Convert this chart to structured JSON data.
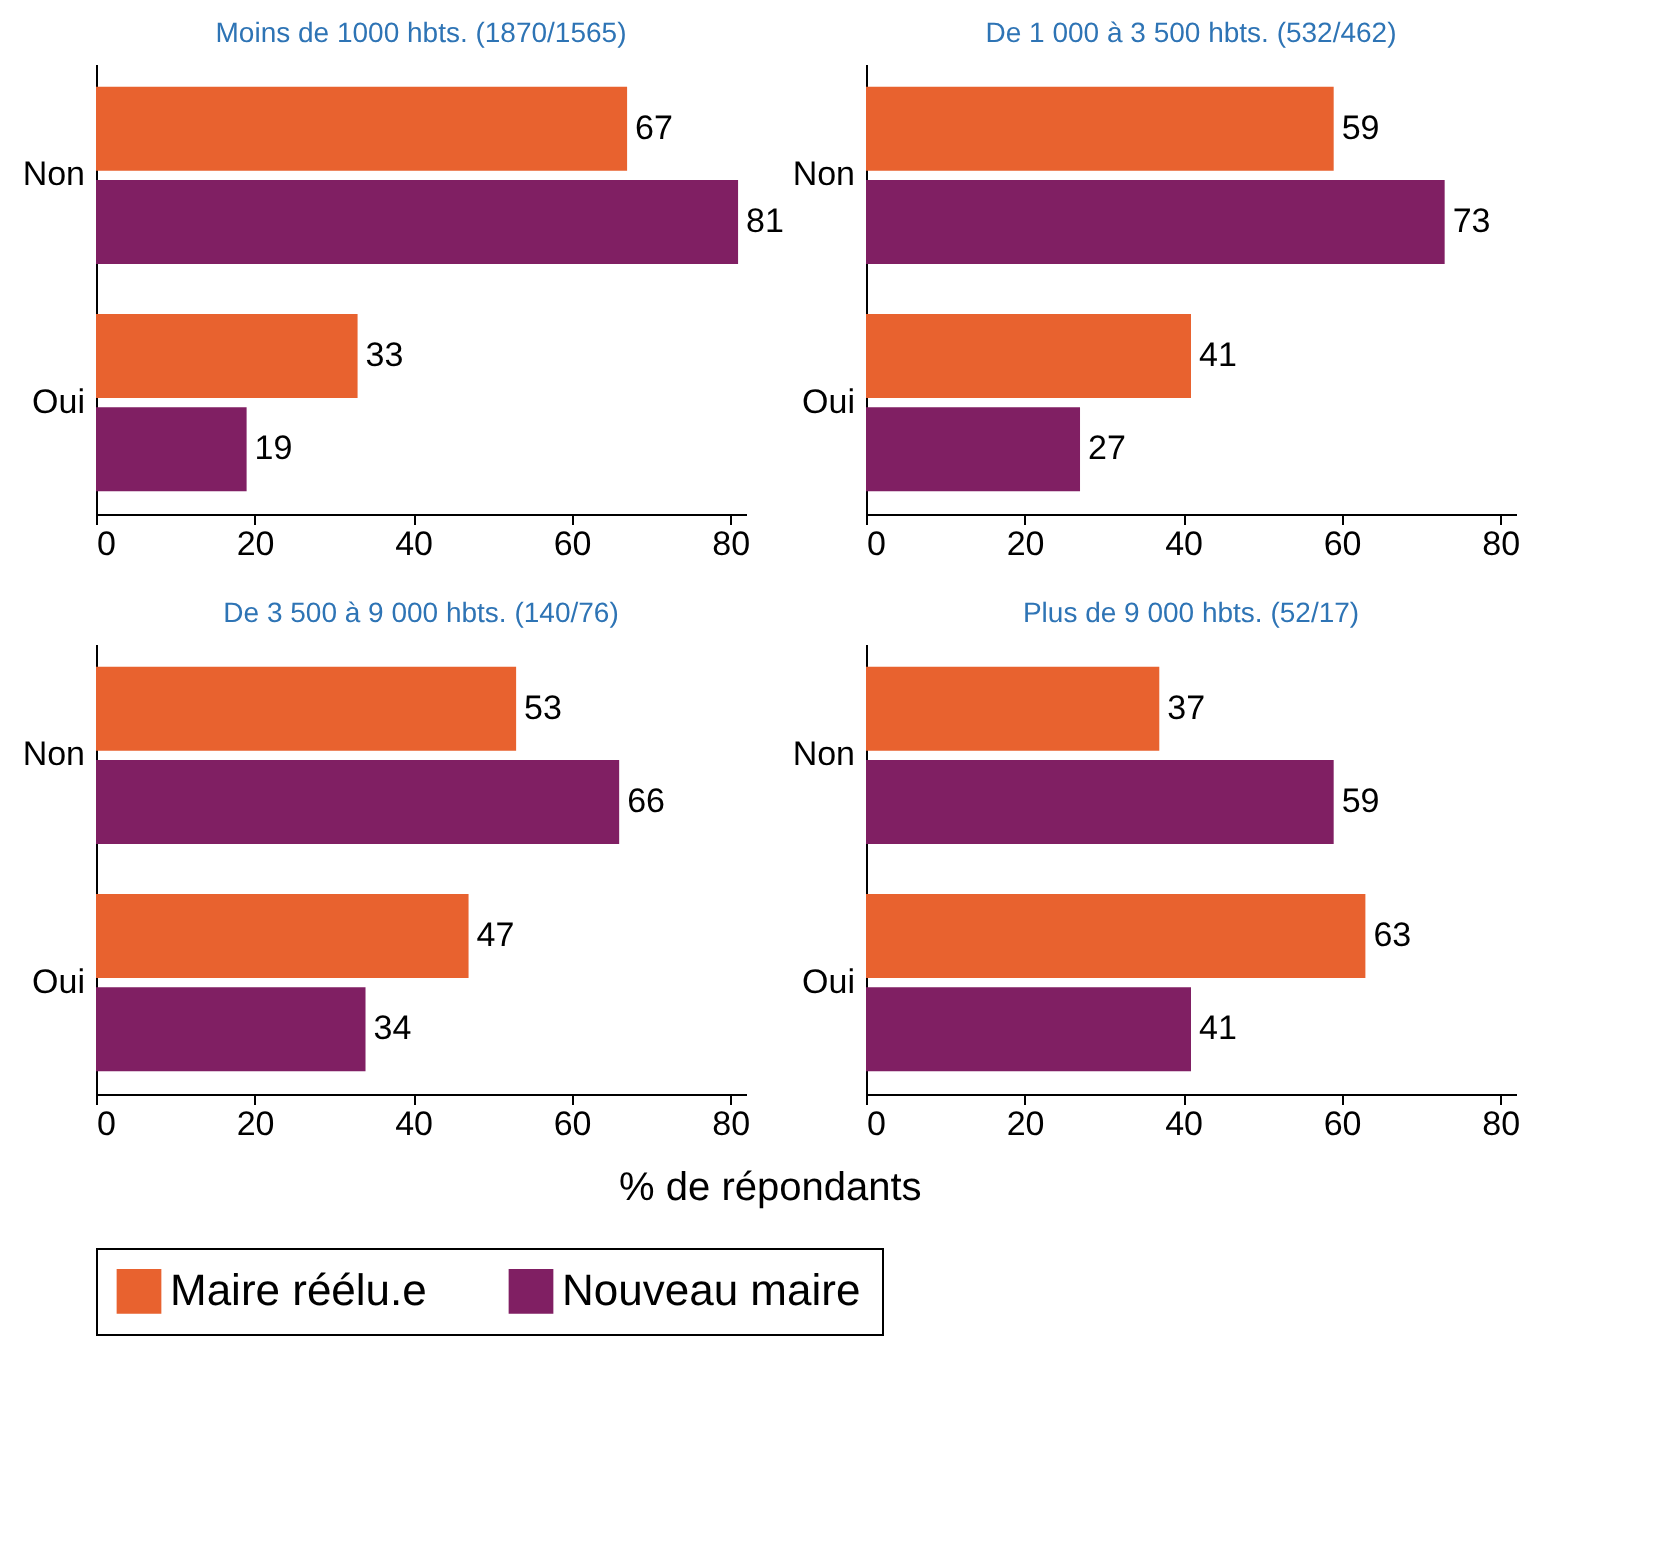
{
  "chart_data": [
    {
      "type": "bar",
      "orientation": "horizontal",
      "title": "Moins de 1000 hbts. (1870/1565)",
      "categories": [
        "Non",
        "Oui"
      ],
      "series": [
        {
          "name": "Maire réélu.e",
          "color": "#e8622f",
          "values": [
            67,
            33
          ]
        },
        {
          "name": "Nouveau maire",
          "color": "#801f63",
          "values": [
            81,
            19
          ]
        }
      ],
      "xlim": [
        0,
        82
      ],
      "xticks": [
        0,
        20,
        40,
        60,
        80
      ],
      "data_labels": true,
      "legend": "bottom"
    },
    {
      "type": "bar",
      "orientation": "horizontal",
      "title": "De 1 000 à 3 500 hbts. (532/462)",
      "categories": [
        "Non",
        "Oui"
      ],
      "series": [
        {
          "name": "Maire réélu.e",
          "color": "#e8622f",
          "values": [
            59,
            41
          ]
        },
        {
          "name": "Nouveau maire",
          "color": "#801f63",
          "values": [
            73,
            27
          ]
        }
      ],
      "xlim": [
        0,
        82
      ],
      "xticks": [
        0,
        20,
        40,
        60,
        80
      ],
      "data_labels": true,
      "legend": "bottom"
    },
    {
      "type": "bar",
      "orientation": "horizontal",
      "title": "De 3 500 à 9 000 hbts. (140/76)",
      "xlabel": "% de répondants",
      "categories": [
        "Non",
        "Oui"
      ],
      "series": [
        {
          "name": "Maire réélu.e",
          "color": "#e8622f",
          "values": [
            53,
            47
          ]
        },
        {
          "name": "Nouveau maire",
          "color": "#801f63",
          "values": [
            66,
            34
          ]
        }
      ],
      "xlim": [
        0,
        82
      ],
      "xticks": [
        0,
        20,
        40,
        60,
        80
      ],
      "data_labels": true,
      "legend": "bottom"
    },
    {
      "type": "bar",
      "orientation": "horizontal",
      "title": "Plus de 9 000 hbts. (52/17)",
      "categories": [
        "Non",
        "Oui"
      ],
      "series": [
        {
          "name": "Maire réélu.e",
          "color": "#e8622f",
          "values": [
            37,
            63
          ]
        },
        {
          "name": "Nouveau maire",
          "color": "#801f63",
          "values": [
            59,
            41
          ]
        }
      ],
      "xlim": [
        0,
        82
      ],
      "xticks": [
        0,
        20,
        40,
        60,
        80
      ],
      "data_labels": true,
      "legend": "bottom"
    }
  ]
}
